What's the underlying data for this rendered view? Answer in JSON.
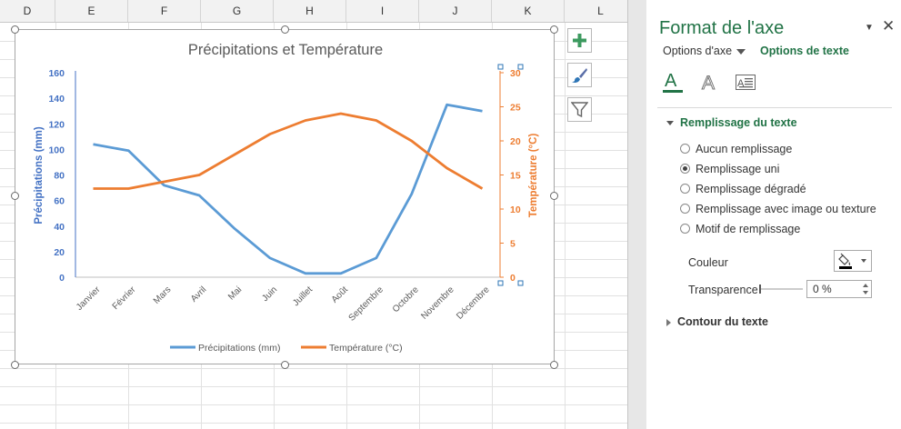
{
  "sheet": {
    "columns": [
      "D",
      "E",
      "F",
      "G",
      "H",
      "I",
      "J",
      "K",
      "L"
    ]
  },
  "chart_tools": {
    "add_element_icon": "plus-icon",
    "style_icon": "paintbrush-icon",
    "filter_icon": "funnel-icon"
  },
  "chart_data": {
    "type": "line",
    "title": "Précipitations et Température",
    "categories": [
      "Janvier",
      "Février",
      "Mars",
      "Avril",
      "Mai",
      "Juin",
      "Juillet",
      "Août",
      "Septembre",
      "Octobre",
      "Novembre",
      "Décembre"
    ],
    "series": [
      {
        "name": "Précipitations (mm)",
        "axis": "left",
        "color": "#5b9bd5",
        "values": [
          104,
          99,
          72,
          64,
          38,
          15,
          3,
          3,
          15,
          65,
          135,
          130
        ]
      },
      {
        "name": "Température (°C)",
        "axis": "right",
        "color": "#ed7d31",
        "values": [
          13,
          13,
          14,
          15,
          18,
          21,
          23,
          24,
          23,
          20,
          16,
          13
        ]
      }
    ],
    "y_left": {
      "label": "Précipitations (mm)",
      "ticks": [
        0,
        20,
        40,
        60,
        80,
        100,
        120,
        140,
        160
      ],
      "range": [
        0,
        160
      ],
      "color": "#4472c4"
    },
    "y_right": {
      "label": "Température (°C)",
      "ticks": [
        0,
        5,
        10,
        15,
        20,
        25,
        30
      ],
      "range": [
        0,
        30
      ],
      "color": "#ed7d31"
    },
    "grid": false,
    "legend": "bottom"
  },
  "pane": {
    "title": "Format de l'axe",
    "options_axis_tab": "Options d'axe",
    "options_text_tab": "Options de texte",
    "text_fill_section": "Remplissage du texte",
    "fill_options": [
      {
        "label": "Aucun remplissage",
        "selected": false
      },
      {
        "label": "Remplissage uni",
        "selected": true
      },
      {
        "label": "Remplissage dégradé",
        "selected": false
      },
      {
        "label": "Remplissage avec image ou texture",
        "selected": false
      },
      {
        "label": "Motif de remplissage",
        "selected": false
      }
    ],
    "color_label": "Couleur",
    "transparency_label": "Transparence",
    "transparency_value": "0 %",
    "text_outline_section": "Contour du texte",
    "accent_color": "#217346"
  }
}
